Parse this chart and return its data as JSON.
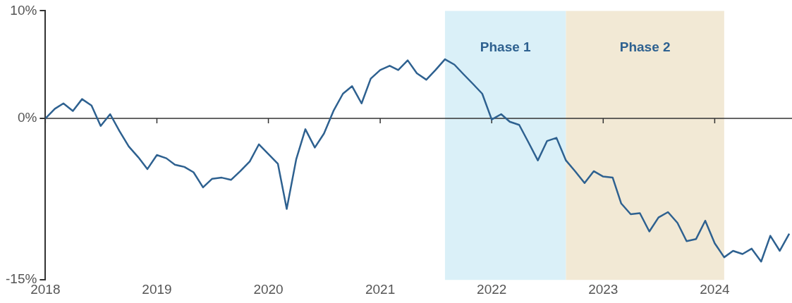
{
  "chart_data": {
    "type": "line",
    "x": [
      "2018-01",
      "2018-02",
      "2018-03",
      "2018-04",
      "2018-05",
      "2018-06",
      "2018-07",
      "2018-08",
      "2018-09",
      "2018-10",
      "2018-11",
      "2018-12",
      "2019-01",
      "2019-02",
      "2019-03",
      "2019-04",
      "2019-05",
      "2019-06",
      "2019-07",
      "2019-08",
      "2019-09",
      "2019-10",
      "2019-11",
      "2019-12",
      "2020-01",
      "2020-02",
      "2020-03",
      "2020-04",
      "2020-05",
      "2020-06",
      "2020-07",
      "2020-08",
      "2020-09",
      "2020-10",
      "2020-11",
      "2020-12",
      "2021-01",
      "2021-02",
      "2021-03",
      "2021-04",
      "2021-05",
      "2021-06",
      "2021-07",
      "2021-08",
      "2021-09",
      "2021-10",
      "2021-11",
      "2021-12",
      "2022-01",
      "2022-02",
      "2022-03",
      "2022-04",
      "2022-05",
      "2022-06",
      "2022-07",
      "2022-08",
      "2022-09",
      "2022-10",
      "2022-11",
      "2022-12",
      "2023-01",
      "2023-02",
      "2023-03",
      "2023-04",
      "2023-05",
      "2023-06",
      "2023-07",
      "2023-08",
      "2023-09",
      "2023-10",
      "2023-11",
      "2023-12",
      "2024-01",
      "2024-02",
      "2024-03",
      "2024-04",
      "2024-05",
      "2024-06",
      "2024-07",
      "2024-08",
      "2024-09"
    ],
    "series": [
      {
        "color": "#2e6190",
        "values": [
          0,
          0.9,
          1.4,
          0.7,
          1.8,
          1.2,
          -0.7,
          0.4,
          -1.2,
          -2.6,
          -3.6,
          -4.7,
          -3.4,
          -3.7,
          -4.3,
          -4.5,
          -5.0,
          -6.4,
          -5.6,
          -5.5,
          -5.7,
          -4.9,
          -4.0,
          -2.4,
          -3.3,
          -4.2,
          -8.4,
          -3.8,
          -1.0,
          -2.7,
          -1.4,
          0.7,
          2.3,
          3.0,
          1.4,
          3.7,
          4.5,
          4.9,
          4.5,
          5.4,
          4.2,
          3.6,
          4.5,
          5.5,
          5.0,
          4.1,
          3.2,
          2.3,
          -0.1,
          0.4,
          -0.3,
          -0.6,
          -2.2,
          -3.9,
          -2.1,
          -1.8,
          -3.9,
          -4.9,
          -6.0,
          -4.9,
          -5.4,
          -5.5,
          -7.9,
          -8.9,
          -8.8,
          -10.5,
          -9.2,
          -8.7,
          -9.7,
          -11.4,
          -11.2,
          -9.5,
          -11.6,
          -12.9,
          -12.3,
          -12.6,
          -12.1,
          -13.3,
          -10.9,
          -12.3,
          -10.7
        ]
      }
    ],
    "xlim": [
      "2018-01-01",
      "2024-09-10"
    ],
    "xticks": [
      {
        "value": "2018-01-01",
        "label": "2018"
      },
      {
        "value": "2019-01-01",
        "label": "2019"
      },
      {
        "value": "2020-01-01",
        "label": "2020"
      },
      {
        "value": "2021-01-01",
        "label": "2021"
      },
      {
        "value": "2022-01-01",
        "label": "2022"
      },
      {
        "value": "2023-01-01",
        "label": "2023"
      },
      {
        "value": "2024-01-01",
        "label": "2024"
      }
    ],
    "ylim": [
      -15,
      10
    ],
    "yticks": [
      {
        "value": -15,
        "label": "-15%"
      },
      {
        "value": 0,
        "label": "0%"
      },
      {
        "value": 10,
        "label": "10%"
      }
    ],
    "bands": [
      {
        "axis": "x",
        "from": "2021-08",
        "to": "2022-09",
        "label": "Phase 1",
        "color": "#daf0f8"
      },
      {
        "axis": "x",
        "from": "2022-09",
        "to": "2024-02",
        "label": "Phase 2",
        "color": "#f2e9d5"
      }
    ],
    "ref_lines": [
      {
        "axis": "y",
        "value": 0,
        "color": "#333333"
      }
    ],
    "grid": false,
    "legend": false,
    "marker": "none",
    "line_style": "solid"
  }
}
